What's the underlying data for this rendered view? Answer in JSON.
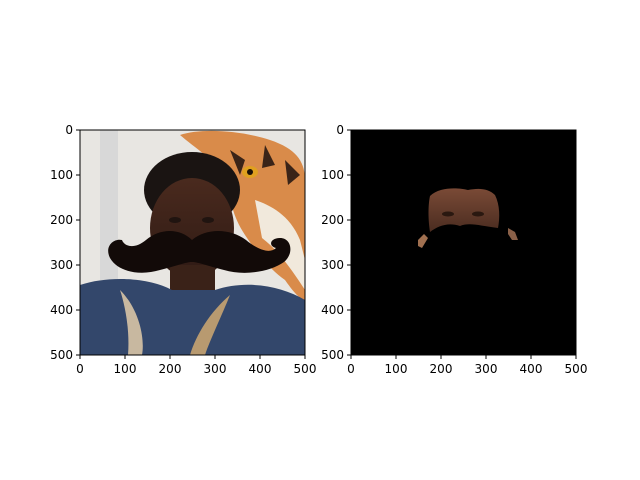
{
  "figure": {
    "background": "#ffffff"
  },
  "chart_data": [
    {
      "type": "image",
      "content": "photo of a man with a large black cartoon mustache overlay, tiger statue in background",
      "xlim": [
        0,
        500
      ],
      "ylim": [
        500,
        0
      ],
      "xticks": [
        "0",
        "100",
        "200",
        "300",
        "400",
        "500"
      ],
      "yticks": [
        "0",
        "100",
        "200",
        "300",
        "400",
        "500"
      ],
      "colors": {
        "mustache": "#120a08",
        "jacket": "#33476b",
        "tiger": "#d98b4a",
        "skin": "#5a3828",
        "bg": "#e8e6e2"
      }
    },
    {
      "type": "image",
      "content": "masked face region on black background",
      "xlim": [
        0,
        500
      ],
      "ylim": [
        500,
        0
      ],
      "xticks": [
        "0",
        "100",
        "200",
        "300",
        "400",
        "500"
      ],
      "yticks": [
        "0",
        "100",
        "200",
        "300",
        "400",
        "500"
      ],
      "colors": {
        "background": "#000000",
        "skin": "#6a4030"
      }
    }
  ]
}
